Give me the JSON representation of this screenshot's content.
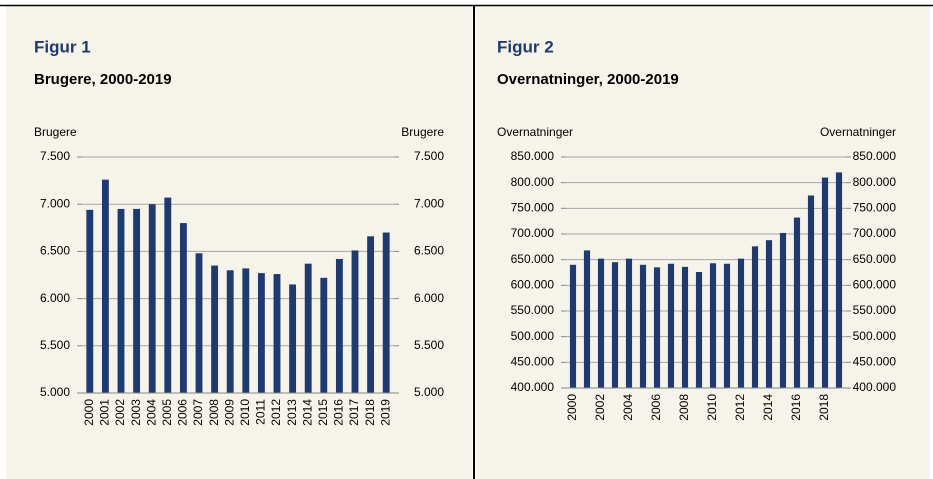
{
  "chart_data": [
    {
      "type": "bar",
      "title": "Figur 1",
      "subtitle": "Brugere, 2000-2019",
      "ylabel": "Brugere",
      "y2label": "Brugere",
      "categories": [
        "2000",
        "2001",
        "2002",
        "2003",
        "2004",
        "2005",
        "2006",
        "2007",
        "2008",
        "2009",
        "2010",
        "2011",
        "2012",
        "2013",
        "2014",
        "2015",
        "2016",
        "2017",
        "2018",
        "2019"
      ],
      "values": [
        6940,
        7260,
        6950,
        6950,
        7000,
        7070,
        6800,
        6480,
        6350,
        6300,
        6320,
        6270,
        6260,
        6150,
        6370,
        6220,
        6420,
        6510,
        6660,
        6700
      ],
      "color": "#1f3a6e",
      "grid": true,
      "ylim": [
        5000,
        7500
      ],
      "yticks": [
        {
          "value": 5000,
          "label": "5.000"
        },
        {
          "value": 5500,
          "label": "5.500"
        },
        {
          "value": 6000,
          "label": "6.000"
        },
        {
          "value": 6500,
          "label": "6.500"
        },
        {
          "value": 7000,
          "label": "7.000"
        },
        {
          "value": 7500,
          "label": "7.500"
        }
      ],
      "y2lim": [
        5000,
        7500
      ],
      "y2ticks": [
        {
          "value": 5000,
          "label": "5.000"
        },
        {
          "value": 5500,
          "label": "5.500"
        },
        {
          "value": 6000,
          "label": "6.000"
        },
        {
          "value": 6500,
          "label": "6.500"
        },
        {
          "value": 7000,
          "label": "7.000"
        },
        {
          "value": 7500,
          "label": "7.500"
        }
      ]
    },
    {
      "type": "bar",
      "title": "Figur 2",
      "subtitle": "Overnatninger, 2000-2019",
      "ylabel": "Overnatninger",
      "y2label": "Overnatninger",
      "categories": [
        "2000",
        null,
        "2002",
        null,
        "2004",
        null,
        "2006",
        null,
        "2008",
        null,
        "2010",
        null,
        "2012",
        null,
        "2014",
        null,
        "2016",
        null,
        "2018",
        null
      ],
      "values": [
        640000,
        668000,
        652000,
        645000,
        652000,
        640000,
        635000,
        642000,
        636000,
        626000,
        643000,
        642000,
        652000,
        676000,
        688000,
        702000,
        732000,
        775000,
        810000,
        820000
      ],
      "color": "#1f3a6e",
      "grid": true,
      "ylim": [
        400000,
        850000
      ],
      "yticks": [
        {
          "value": 400000,
          "label": "400.000"
        },
        {
          "value": 450000,
          "label": "450.000"
        },
        {
          "value": 500000,
          "label": "500.000"
        },
        {
          "value": 550000,
          "label": "550.000"
        },
        {
          "value": 600000,
          "label": "600.000"
        },
        {
          "value": 650000,
          "label": "650.000"
        },
        {
          "value": 700000,
          "label": "700.000"
        },
        {
          "value": 750000,
          "label": "750.000"
        },
        {
          "value": 800000,
          "label": "800.000"
        },
        {
          "value": 850000,
          "label": "850.000"
        }
      ],
      "y2lim": [
        400000,
        850000
      ],
      "y2ticks": [
        {
          "value": 400000,
          "label": "400.000"
        },
        {
          "value": 450000,
          "label": "450.000"
        },
        {
          "value": 500000,
          "label": "500.000"
        },
        {
          "value": 550000,
          "label": "550.000"
        },
        {
          "value": 600000,
          "label": "600.000"
        },
        {
          "value": 650000,
          "label": "650.000"
        },
        {
          "value": 700000,
          "label": "700.000"
        },
        {
          "value": 750000,
          "label": "750.000"
        },
        {
          "value": 800000,
          "label": "800.000"
        },
        {
          "value": 850000,
          "label": "850.000"
        }
      ]
    }
  ]
}
